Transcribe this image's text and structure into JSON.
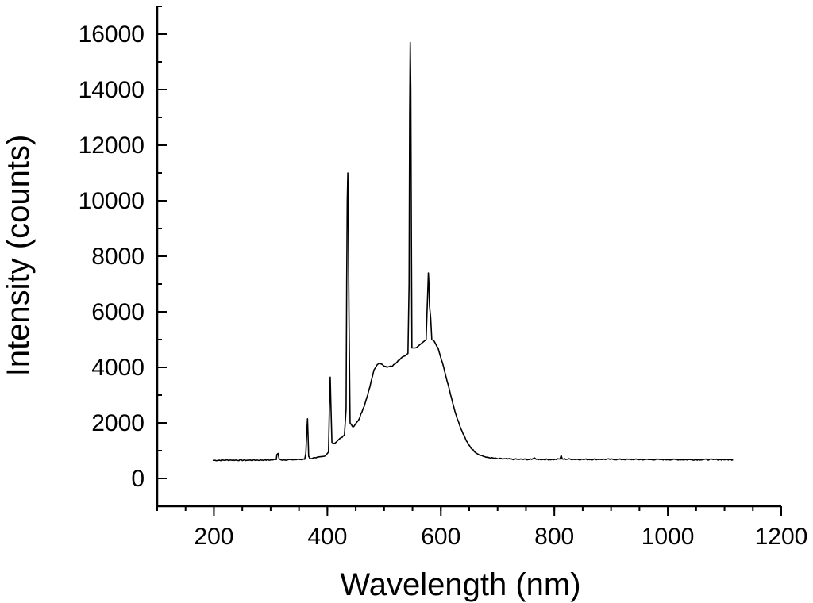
{
  "chart_data": {
    "type": "line",
    "xlabel": "Wavelength (nm)",
    "ylabel": "Intensity (counts)",
    "xlim": [
      100,
      1200
    ],
    "ylim": [
      -1000,
      17000
    ],
    "x_ticks": [
      200,
      400,
      600,
      800,
      1000,
      1200
    ],
    "x_minor_step": 50,
    "y_ticks": [
      0,
      2000,
      4000,
      6000,
      8000,
      10000,
      12000,
      14000,
      16000
    ],
    "y_minor_step": 1000,
    "grid": false,
    "legend": "none",
    "series": [
      {
        "points": [
          [
            198,
            650
          ],
          [
            230,
            660
          ],
          [
            260,
            655
          ],
          [
            300,
            665
          ],
          [
            310,
            680
          ],
          [
            311,
            860
          ],
          [
            313,
            900
          ],
          [
            315,
            700
          ],
          [
            318,
            670
          ],
          [
            340,
            675
          ],
          [
            360,
            690
          ],
          [
            362,
            900
          ],
          [
            364,
            1800
          ],
          [
            365,
            2150
          ],
          [
            366,
            1500
          ],
          [
            367,
            800
          ],
          [
            369,
            720
          ],
          [
            380,
            740
          ],
          [
            395,
            800
          ],
          [
            402,
            950
          ],
          [
            404,
            3000
          ],
          [
            405,
            3650
          ],
          [
            406,
            2800
          ],
          [
            408,
            1300
          ],
          [
            412,
            1250
          ],
          [
            420,
            1400
          ],
          [
            430,
            1550
          ],
          [
            433,
            2500
          ],
          [
            434,
            7000
          ],
          [
            435,
            10000
          ],
          [
            436,
            11000
          ],
          [
            437,
            9000
          ],
          [
            438,
            6000
          ],
          [
            440,
            2000
          ],
          [
            445,
            1850
          ],
          [
            455,
            2100
          ],
          [
            465,
            2600
          ],
          [
            475,
            3300
          ],
          [
            482,
            3900
          ],
          [
            488,
            4100
          ],
          [
            492,
            4150
          ],
          [
            497,
            4100
          ],
          [
            505,
            4000
          ],
          [
            515,
            4050
          ],
          [
            525,
            4250
          ],
          [
            535,
            4400
          ],
          [
            542,
            4500
          ],
          [
            544,
            7000
          ],
          [
            545,
            13000
          ],
          [
            546,
            15700
          ],
          [
            547,
            14000
          ],
          [
            548,
            9000
          ],
          [
            549,
            4700
          ],
          [
            555,
            4700
          ],
          [
            562,
            4800
          ],
          [
            568,
            4900
          ],
          [
            574,
            5000
          ],
          [
            577,
            6800
          ],
          [
            578,
            7400
          ],
          [
            579,
            7000
          ],
          [
            580,
            6200
          ],
          [
            582,
            5800
          ],
          [
            584,
            5000
          ],
          [
            588,
            4950
          ],
          [
            595,
            4700
          ],
          [
            605,
            4000
          ],
          [
            615,
            3200
          ],
          [
            625,
            2400
          ],
          [
            635,
            1800
          ],
          [
            645,
            1350
          ],
          [
            655,
            1050
          ],
          [
            665,
            880
          ],
          [
            680,
            760
          ],
          [
            700,
            710
          ],
          [
            730,
            690
          ],
          [
            760,
            685
          ],
          [
            765,
            740
          ],
          [
            768,
            690
          ],
          [
            800,
            680
          ],
          [
            810,
            700
          ],
          [
            812,
            830
          ],
          [
            814,
            700
          ],
          [
            850,
            685
          ],
          [
            880,
            690
          ],
          [
            920,
            685
          ],
          [
            960,
            680
          ],
          [
            1000,
            680
          ],
          [
            1040,
            675
          ],
          [
            1080,
            680
          ],
          [
            1115,
            675
          ]
        ]
      }
    ]
  }
}
